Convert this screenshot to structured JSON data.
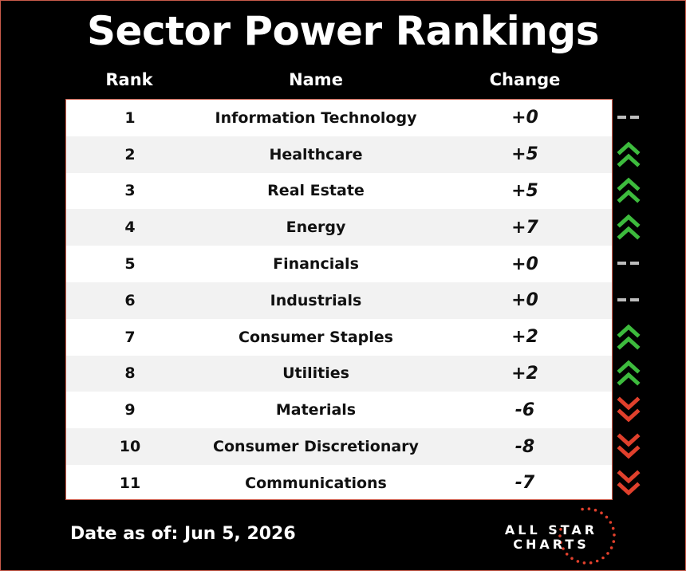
{
  "title": "Sector Power Rankings",
  "headers": {
    "rank": "Rank",
    "name": "Name",
    "change": "Change"
  },
  "rows": [
    {
      "rank": "1",
      "name": "Information Technology",
      "change": "+0",
      "trend": "flat"
    },
    {
      "rank": "2",
      "name": "Healthcare",
      "change": "+5",
      "trend": "up"
    },
    {
      "rank": "3",
      "name": "Real Estate",
      "change": "+5",
      "trend": "up"
    },
    {
      "rank": "4",
      "name": "Energy",
      "change": "+7",
      "trend": "up"
    },
    {
      "rank": "5",
      "name": "Financials",
      "change": "+0",
      "trend": "flat"
    },
    {
      "rank": "6",
      "name": "Industrials",
      "change": "+0",
      "trend": "flat"
    },
    {
      "rank": "7",
      "name": "Consumer Staples",
      "change": "+2",
      "trend": "up"
    },
    {
      "rank": "8",
      "name": "Utilities",
      "change": "+2",
      "trend": "up"
    },
    {
      "rank": "9",
      "name": "Materials",
      "change": "-6",
      "trend": "down"
    },
    {
      "rank": "10",
      "name": "Consumer Discretionary",
      "change": "-8",
      "trend": "down"
    },
    {
      "rank": "11",
      "name": "Communications",
      "change": "-7",
      "trend": "down"
    }
  ],
  "footer": {
    "date_text": "Date as of: Jun 5, 2026",
    "logo_line1": "ALL STAR",
    "logo_line2": "CHARTS"
  },
  "colors": {
    "up": "#3dbb3d",
    "down": "#e0402c",
    "flat": "#bdbdbd",
    "accent": "#c85a4a"
  },
  "icons": {
    "up": "double-chevron-up-icon",
    "down": "double-chevron-down-icon",
    "flat": "dash-icon"
  }
}
